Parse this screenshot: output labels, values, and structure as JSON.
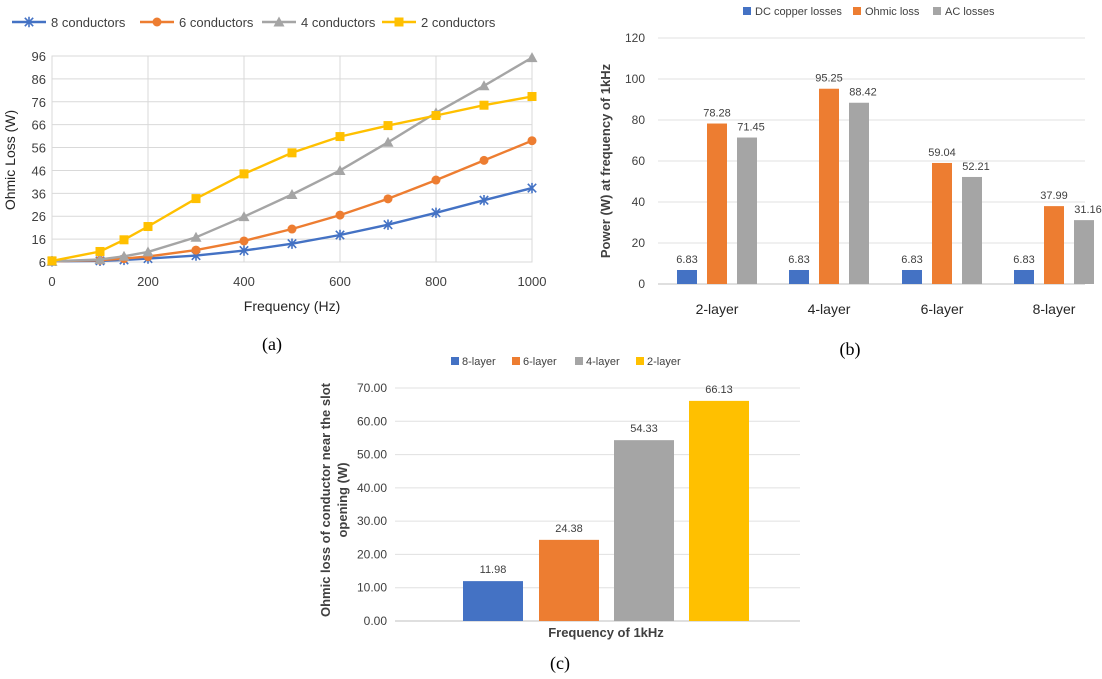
{
  "chart_data": [
    {
      "type": "line",
      "panel": "a",
      "caption": "(a)",
      "title": "",
      "xlabel": "Frequency (Hz)",
      "ylabel": "Ohmic Loss (W)",
      "xlim": [
        0,
        1000
      ],
      "ylim": [
        6,
        96
      ],
      "xticks": [
        "0",
        "200",
        "400",
        "600",
        "800",
        "1000"
      ],
      "yticks": [
        "6",
        "16",
        "26",
        "36",
        "46",
        "56",
        "66",
        "76",
        "86",
        "96"
      ],
      "grid": true,
      "legend_position": "top",
      "series": [
        {
          "name": "8 conductors",
          "color": "#4472C4",
          "marker": "asterisk",
          "x": [
            0,
            100,
            150,
            200,
            300,
            400,
            500,
            600,
            700,
            800,
            900,
            1000
          ],
          "y": [
            6.3,
            6.5,
            6.9,
            7.5,
            8.8,
            11.0,
            14.0,
            17.8,
            22.3,
            27.5,
            33.0,
            38.3
          ]
        },
        {
          "name": "6 conductors",
          "color": "#ED7D31",
          "marker": "circle",
          "x": [
            0,
            100,
            150,
            200,
            300,
            400,
            500,
            600,
            700,
            800,
            900,
            1000
          ],
          "y": [
            6.3,
            6.8,
            7.5,
            8.4,
            11.2,
            15.2,
            20.4,
            26.5,
            33.6,
            41.8,
            50.4,
            59.0
          ]
        },
        {
          "name": "4 conductors",
          "color": "#A5A5A5",
          "marker": "triangle",
          "x": [
            0,
            100,
            150,
            200,
            300,
            400,
            500,
            600,
            700,
            800,
            900,
            1000
          ],
          "y": [
            6.3,
            7.1,
            8.5,
            10.4,
            16.8,
            25.8,
            35.5,
            46.0,
            58.3,
            71.2,
            83.0,
            95.3
          ]
        },
        {
          "name": "2 conductors",
          "color": "#FFC000",
          "marker": "square",
          "x": [
            0,
            100,
            150,
            200,
            300,
            400,
            500,
            600,
            700,
            800,
            900,
            1000
          ],
          "y": [
            6.5,
            10.6,
            15.7,
            21.5,
            33.7,
            44.5,
            53.7,
            60.8,
            65.6,
            70.0,
            74.5,
            78.3
          ]
        }
      ]
    },
    {
      "type": "bar",
      "panel": "b",
      "caption": "(b)",
      "title": "",
      "xlabel": "",
      "ylabel": "Power (W) at frequency of 1kHz",
      "ylim": [
        0,
        120
      ],
      "yticks": [
        "0",
        "20",
        "40",
        "60",
        "80",
        "100",
        "120"
      ],
      "grid": true,
      "legend_position": "top",
      "categories": [
        "2-layer",
        "4-layer",
        "6-layer",
        "8-layer"
      ],
      "series": [
        {
          "name": "DC copper losses",
          "color": "#4472C4",
          "values": [
            6.83,
            6.83,
            6.83,
            6.83
          ],
          "labels": [
            "6.83",
            "6.83",
            "6.83",
            "6.83"
          ]
        },
        {
          "name": "Ohmic loss",
          "color": "#ED7D31",
          "values": [
            78.28,
            95.25,
            59.04,
            37.99
          ],
          "labels": [
            "78.28",
            "95.25",
            "59.04",
            "37.99"
          ]
        },
        {
          "name": "AC losses",
          "color": "#A5A5A5",
          "values": [
            71.45,
            88.42,
            52.21,
            31.16
          ],
          "labels": [
            "71.45",
            "88.42",
            "52.21",
            "31.16"
          ]
        }
      ]
    },
    {
      "type": "bar",
      "panel": "c",
      "caption": "(c)",
      "title": "",
      "xlabel": "Frequency of 1kHz",
      "ylabel_line1": "Ohmic loss of conductor near the slot",
      "ylabel_line2": "opening (W)",
      "ylim": [
        0,
        70
      ],
      "yticks": [
        "0.00",
        "10.00",
        "20.00",
        "30.00",
        "40.00",
        "50.00",
        "60.00",
        "70.00"
      ],
      "grid": true,
      "legend_position": "top",
      "series": [
        {
          "name": "8-layer",
          "color": "#4472C4",
          "value": 11.98,
          "label": "11.98"
        },
        {
          "name": "6-layer",
          "color": "#ED7D31",
          "value": 24.38,
          "label": "24.38"
        },
        {
          "name": "4-layer",
          "color": "#A5A5A5",
          "value": 54.33,
          "label": "54.33"
        },
        {
          "name": "2-layer",
          "color": "#FFC000",
          "value": 66.13,
          "label": "66.13"
        }
      ]
    }
  ]
}
